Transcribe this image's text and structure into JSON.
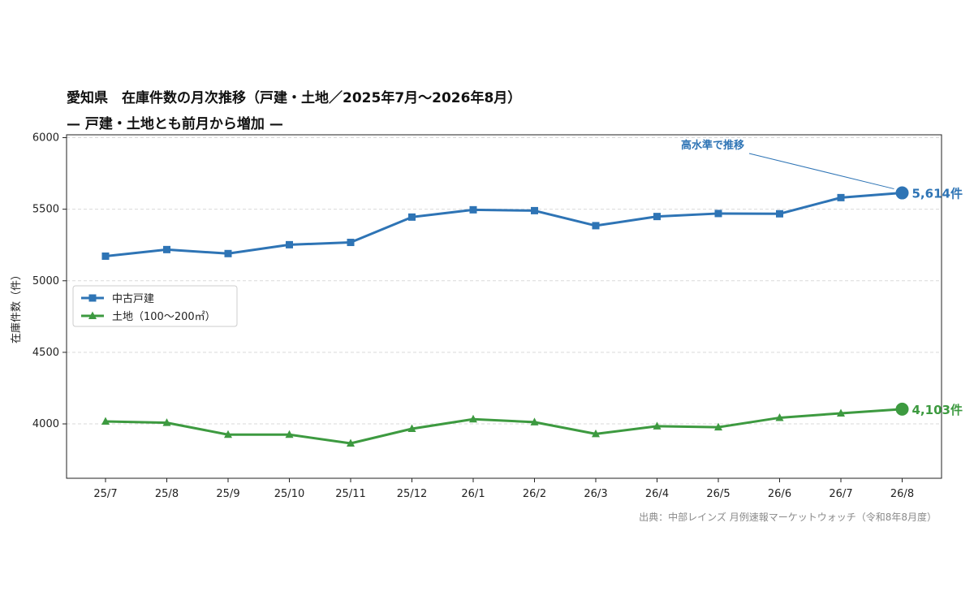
{
  "chart_data": {
    "type": "line",
    "title": "愛知県　在庫件数の月次推移（戸建・土地／2025年7月〜2026年8月）",
    "subtitle": "— 戸建・土地とも前月から増加 —",
    "ylabel": "在庫件数（件）",
    "xlabel": "",
    "categories": [
      "25/7",
      "25/8",
      "25/9",
      "25/10",
      "25/11",
      "25/12",
      "26/1",
      "26/2",
      "26/3",
      "26/4",
      "26/5",
      "26/6",
      "26/7",
      "26/8"
    ],
    "ylim": [
      3620,
      6020
    ],
    "yticks": [
      4000,
      4500,
      5000,
      5500,
      6000
    ],
    "grid": "horizontal dashed",
    "legend_position": "center-left",
    "series": [
      {
        "name": "中古戸建",
        "color": "#2e74b5",
        "marker": "square",
        "values": [
          5172,
          5218,
          5190,
          5252,
          5268,
          5445,
          5496,
          5490,
          5385,
          5449,
          5470,
          5468,
          5581,
          5614
        ],
        "end_label": "5,614件"
      },
      {
        "name": "土地（100〜200㎡）",
        "color": "#3d9a40",
        "marker": "triangle",
        "values": [
          4017,
          4008,
          3925,
          3925,
          3864,
          3966,
          4033,
          4012,
          3930,
          3984,
          3977,
          4043,
          4074,
          4103
        ],
        "end_label": "4,103件"
      }
    ],
    "annotations": [
      {
        "text": "高水準で推移",
        "color": "#2e74b5"
      }
    ]
  },
  "source": "出典：中部レインズ 月例速報マーケットウォッチ（令和8年8月度）"
}
